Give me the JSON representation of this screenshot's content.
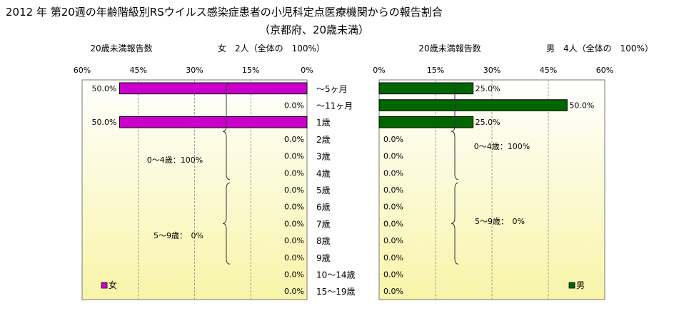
{
  "title": "2012 年 第20週の年齢階級別RSウイルス感染症患者の小児科定点医療機関からの報告割合",
  "subtitle": "（京都府、20歳未満）",
  "colors": {
    "female": "#cc00cc",
    "male": "#006600",
    "bg_top": "#ffffff",
    "bg_bottom": "#f8f4a8",
    "grid": "#888888"
  },
  "chart_data": {
    "type": "bar",
    "orientation": "horizontal",
    "categories": [
      "～5ヶ月",
      "～11ヶ月",
      "1歳",
      "2歳",
      "3歳",
      "4歳",
      "5歳",
      "6歳",
      "7歳",
      "8歳",
      "9歳",
      "10～14歳",
      "15～19歳"
    ],
    "xlim": [
      0,
      60
    ],
    "ticks": [
      "60%",
      "45%",
      "30%",
      "15%",
      "0%"
    ],
    "ticks_right": [
      "0%",
      "15%",
      "30%",
      "45%",
      "60%"
    ],
    "grid": true,
    "panels": [
      {
        "side": "left",
        "report_label": "20歳未満報告数",
        "header": "女　2人（全体の　100%）",
        "legend": "女",
        "legend_position": "bottom-left",
        "values": [
          50,
          0,
          50,
          0,
          0,
          0,
          0,
          0,
          0,
          0,
          0,
          0,
          0
        ],
        "value_labels": [
          "50.0%",
          "0.0%",
          "50.0%",
          "0.0%",
          "0.0%",
          "0.0%",
          "0.0%",
          "0.0%",
          "0.0%",
          "0.0%",
          "0.0%",
          "0.0%",
          "0.0%"
        ],
        "annotations": [
          "0～4歳：100%",
          "5～9歳：　0%"
        ]
      },
      {
        "side": "right",
        "report_label": "20歳未満報告数",
        "header": "男　4人（全体の　100%）",
        "legend": "男",
        "legend_position": "bottom-right",
        "values": [
          25,
          50,
          25,
          0,
          0,
          0,
          0,
          0,
          0,
          0,
          0,
          0,
          0
        ],
        "value_labels": [
          "25.0%",
          "50.0%",
          "25.0%",
          "0.0%",
          "0.0%",
          "0.0%",
          "0.0%",
          "0.0%",
          "0.0%",
          "0.0%",
          "0.0%",
          "0.0%",
          "0.0%"
        ],
        "annotations": [
          "0～4歳：100%",
          "5～9歳：　0%"
        ]
      }
    ]
  }
}
